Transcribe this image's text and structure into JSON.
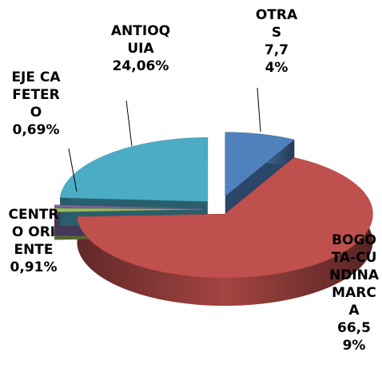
{
  "chart_data": {
    "type": "pie",
    "categories": [
      "OTRAS",
      "BOGOTA-CUNDINAMARCA",
      "CENTRO ORIENTE",
      "EJE CAFETERO",
      "ANTIOQUIA"
    ],
    "values": [
      7.74,
      66.59,
      0.91,
      0.69,
      24.06
    ],
    "value_labels": [
      "7,74%",
      "66,59%",
      "0,91%",
      "0,69%",
      "24,06%"
    ],
    "colors": [
      "#4f81bd",
      "#c0504d",
      "#9bbb59",
      "#8064a2",
      "#4bacc6"
    ]
  }
}
